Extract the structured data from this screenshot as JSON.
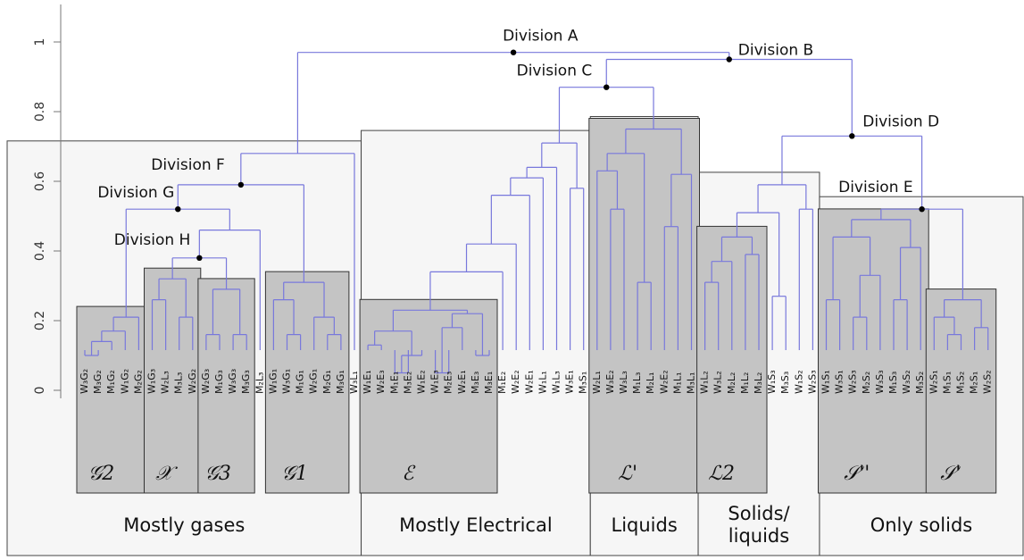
{
  "axis": {
    "ticks": [
      0,
      0.2,
      0.4,
      0.6,
      0.8,
      1
    ]
  },
  "tree": {
    "label": "Division A",
    "height": 0.97,
    "children": [
      {
        "group": "Mostly gases",
        "height": 0.68,
        "children": [
          {
            "label": "Division F",
            "height": 0.59,
            "children": [
              {
                "label": "Division G",
                "height": 0.52,
                "children": [
                  {
                    "cluster": "𝒢2",
                    "height": 0.21,
                    "children": [
                      {
                        "height": 0.17,
                        "children": [
                          {
                            "height": 0.14,
                            "children": [
                              {
                                "height": 0.1,
                                "children": [
                                  "W₃G₂",
                                  "M₃G₂"
                                ]
                              },
                              "M₁G₂"
                            ]
                          },
                          "W₁G₂"
                        ]
                      },
                      "M₂G₂"
                    ]
                  },
                  {
                    "height": 0.46,
                    "children": [
                      {
                        "label": "Division H",
                        "height": 0.38,
                        "children": [
                          {
                            "cluster": "𝒳",
                            "height": 0.32,
                            "children": [
                              {
                                "height": 0.26,
                                "children": [
                                  "W₁G₃",
                                  "W₂L₃"
                                ]
                              },
                              {
                                "height": 0.21,
                                "children": [
                                  "M₃L₃",
                                  "W₂G₂"
                                ]
                              }
                            ]
                          },
                          {
                            "cluster": "𝒢3",
                            "height": 0.29,
                            "children": [
                              {
                                "height": 0.16,
                                "children": [
                                  "W₂G₃",
                                  "M₁G₃"
                                ]
                              },
                              {
                                "height": 0.16,
                                "children": [
                                  "W₃G₃",
                                  "M₃G₃"
                                ]
                              }
                            ]
                          }
                        ]
                      },
                      "M₂L₃"
                    ]
                  }
                ]
              },
              {
                "cluster": "𝒢1",
                "height": 0.31,
                "children": [
                  {
                    "height": 0.26,
                    "children": [
                      "W₁G₁",
                      {
                        "height": 0.16,
                        "children": [
                          "W₃G₁",
                          "M₁G₁"
                        ]
                      }
                    ]
                  },
                  {
                    "height": 0.21,
                    "children": [
                      "W₂G₁",
                      {
                        "height": 0.16,
                        "children": [
                          "M₂G₁",
                          "M₃G₁"
                        ]
                      }
                    ]
                  }
                ]
              }
            ]
          },
          "W₃L₁"
        ]
      },
      {
        "label": "Division B",
        "height": 0.95,
        "children": [
          {
            "label": "Division C",
            "height": 0.87,
            "children": [
              {
                "group": "Mostly Electrical",
                "height": 0.71,
                "children": [
                  {
                    "height": 0.64,
                    "children": [
                      {
                        "height": 0.61,
                        "children": [
                          {
                            "height": 0.56,
                            "children": [
                              {
                                "height": 0.42,
                                "children": [
                                  {
                                    "height": 0.34,
                                    "children": [
                                      {
                                        "cluster": "ℰ",
                                        "height": 0.23,
                                        "children": [
                                          {
                                            "height": 0.17,
                                            "children": [
                                              {
                                                "height": 0.13,
                                                "children": [
                                                  "W₁E₁",
                                                  "W₂E₃"
                                                ]
                                              },
                                              {
                                                "height": 0.1,
                                                "children": [
                                                  {
                                                    "height": 0.05,
                                                    "children": [
                                                      "M₁E₁",
                                                      "M₃E₂"
                                                    ]
                                                  },
                                                  "W₁E₂"
                                                ]
                                              }
                                            ]
                                          },
                                          {
                                            "height": 0.22,
                                            "children": [
                                              {
                                                "height": 0.18,
                                                "children": [
                                                  {
                                                    "height": 0.05,
                                                    "children": [
                                                      "W₁E₃",
                                                      "M₂E₃"
                                                    ]
                                                  },
                                                  "W₂E₁"
                                                ]
                                              },
                                              {
                                                "height": 0.1,
                                                "children": [
                                                  "M₃E₃",
                                                  "M₃E₁"
                                                ]
                                              }
                                            ]
                                          }
                                        ]
                                      },
                                      "M₁E₂"
                                    ]
                                  },
                                  "W₂E₂"
                                ]
                              },
                              "W₂E₁"
                            ]
                          },
                          "W₁L₁"
                        ]
                      },
                      "W₁L₃"
                    ]
                  },
                  {
                    "height": 0.58,
                    "children": [
                      "W₃E₁",
                      "M₃S₁"
                    ]
                  }
                ]
              },
              {
                "cluster": "ℒ'",
                "group": "Liquids",
                "height": 0.75,
                "children": [
                  {
                    "height": 0.68,
                    "children": [
                      {
                        "height": 0.63,
                        "children": [
                          "W₂L₁",
                          {
                            "height": 0.52,
                            "children": [
                              "W₃E₂",
                              "W₃L₃"
                            ]
                          }
                        ]
                      },
                      {
                        "height": 0.31,
                        "children": [
                          "M₁L₃",
                          "M₂L₁"
                        ]
                      }
                    ]
                  },
                  {
                    "height": 0.62,
                    "children": [
                      {
                        "height": 0.47,
                        "children": [
                          "W₂E₂",
                          "M₁L₁"
                        ]
                      },
                      "M₃L₁"
                    ]
                  }
                ]
              }
            ]
          },
          {
            "label": "Division D",
            "height": 0.73,
            "children": [
              {
                "group": "Solids/ liquids",
                "height": 0.59,
                "children": [
                  {
                    "height": 0.51,
                    "children": [
                      {
                        "cluster": "ℒ2",
                        "height": 0.44,
                        "children": [
                          {
                            "height": 0.37,
                            "children": [
                              {
                                "height": 0.31,
                                "children": [
                                  "W₁L₂",
                                  "W₃L₂"
                                ]
                              },
                              "M₂L₂"
                            ]
                          },
                          {
                            "height": 0.39,
                            "children": [
                              "M₁L₂",
                              "M₃L₂"
                            ]
                          }
                        ]
                      },
                      {
                        "height": 0.27,
                        "children": [
                          "W₁S₃",
                          "M₃S₃"
                        ]
                      }
                    ]
                  },
                  {
                    "height": 0.52,
                    "children": [
                      "W₁S₂",
                      "W₂S₃"
                    ]
                  }
                ]
              },
              {
                "label": "Division E",
                "group": "Only solids",
                "height": 0.52,
                "children": [
                  {
                    "cluster": "𝒮''",
                    "height": 0.49,
                    "children": [
                      {
                        "height": 0.44,
                        "children": [
                          {
                            "height": 0.26,
                            "children": [
                              "W₁S₁",
                              "W₃S₁"
                            ]
                          },
                          {
                            "height": 0.33,
                            "children": [
                              {
                                "height": 0.21,
                                "children": [
                                  "W₂S₃",
                                  "M₂S₂"
                                ]
                              },
                              "W₃S₃"
                            ]
                          }
                        ]
                      },
                      {
                        "height": 0.41,
                        "children": [
                          {
                            "height": 0.26,
                            "children": [
                              "M₁S₃",
                              "W₃S₂"
                            ]
                          },
                          "M₃S₂"
                        ]
                      }
                    ]
                  },
                  {
                    "cluster": "𝒮'",
                    "height": 0.26,
                    "children": [
                      {
                        "height": 0.21,
                        "children": [
                          "W₂S₁",
                          {
                            "height": 0.16,
                            "children": [
                              "M₁S₁",
                              "M₁S₂"
                            ]
                          }
                        ]
                      },
                      {
                        "height": 0.18,
                        "children": [
                          "M₂S₁",
                          "W₂S₂"
                        ]
                      }
                    ]
                  }
                ]
              }
            ]
          }
        ]
      }
    ]
  }
}
